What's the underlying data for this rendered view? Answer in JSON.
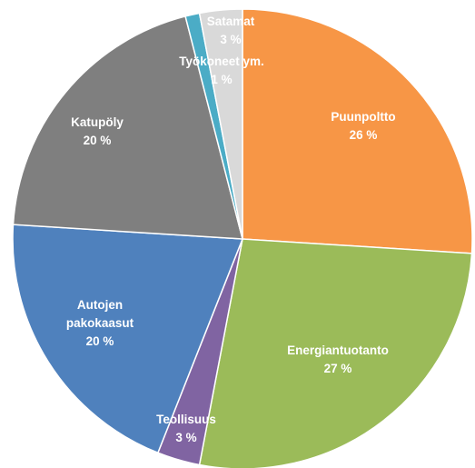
{
  "chart_data": {
    "type": "pie",
    "title": "",
    "start_angle_deg": 0,
    "direction": "clockwise",
    "legend": "none",
    "slices": [
      {
        "label": [
          "Puunpoltto"
        ],
        "value_label": "26 %",
        "value": 26,
        "color": "#F79646"
      },
      {
        "label": [
          "Energiantuotanto"
        ],
        "value_label": "27 %",
        "value": 27,
        "color": "#9BBB59"
      },
      {
        "label": [
          "Teollisuus"
        ],
        "value_label": "3 %",
        "value": 3,
        "color": "#8064A2"
      },
      {
        "label": [
          "Autojen",
          "pakokaasut"
        ],
        "value_label": "20 %",
        "value": 20,
        "color": "#4F81BD"
      },
      {
        "label": [
          "Katupöly"
        ],
        "value_label": "20 %",
        "value": 20,
        "color": "#7F7F7F"
      },
      {
        "label": [
          "Työkoneet ym."
        ],
        "value_label": "1 %",
        "value": 1,
        "color": "#4BACC6"
      },
      {
        "label": [
          "Satamat"
        ],
        "value_label": "3 %",
        "value": 3,
        "color": "#D9D9D9"
      }
    ]
  }
}
